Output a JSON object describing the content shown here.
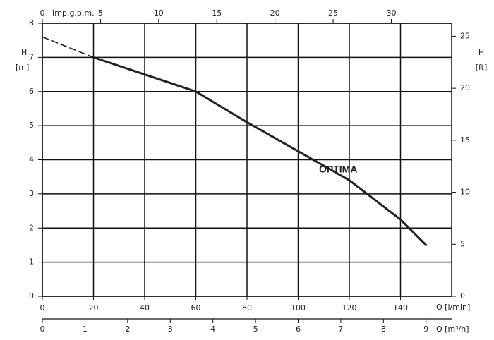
{
  "chart_data": {
    "type": "line",
    "annotation": "OPTIMA",
    "x": [
      0,
      20,
      40,
      60,
      80,
      100,
      120,
      140,
      150
    ],
    "series": [
      {
        "color": "#222222",
        "dashed": true,
        "values": [
          7.6,
          7.0,
          null,
          null,
          null,
          null,
          null,
          null,
          null
        ]
      },
      {
        "color": "#222222",
        "dashed": false,
        "values": [
          null,
          7.0,
          6.5,
          6.0,
          5.1,
          4.25,
          3.4,
          2.25,
          1.5
        ]
      }
    ],
    "xlabel": "Q [l/min]",
    "xlim": [
      0,
      160
    ],
    "xticks": [
      0,
      20,
      40,
      60,
      80,
      100,
      120,
      140
    ],
    "ylabel": [
      "H",
      "[m]"
    ],
    "ylim": [
      0,
      8
    ],
    "yticks": [
      0,
      1,
      2,
      3,
      4,
      5,
      6,
      7,
      8
    ],
    "y2label": [
      "H",
      "[ft]"
    ],
    "y2lim": [
      0,
      26.25
    ],
    "y2ticks": [
      0,
      5,
      10,
      15,
      20,
      25
    ],
    "top_axis": {
      "label": "Imp.g.p.m.",
      "lim": [
        0,
        35.19
      ],
      "ticks": [
        0,
        5,
        10,
        15,
        20,
        25,
        30
      ]
    },
    "bottom_axis": {
      "label": "Q [m³/h]",
      "lim": [
        0,
        9.6
      ],
      "ticks": [
        0,
        1,
        2,
        3,
        4,
        5,
        6,
        7,
        8,
        9
      ]
    },
    "grid": true
  }
}
